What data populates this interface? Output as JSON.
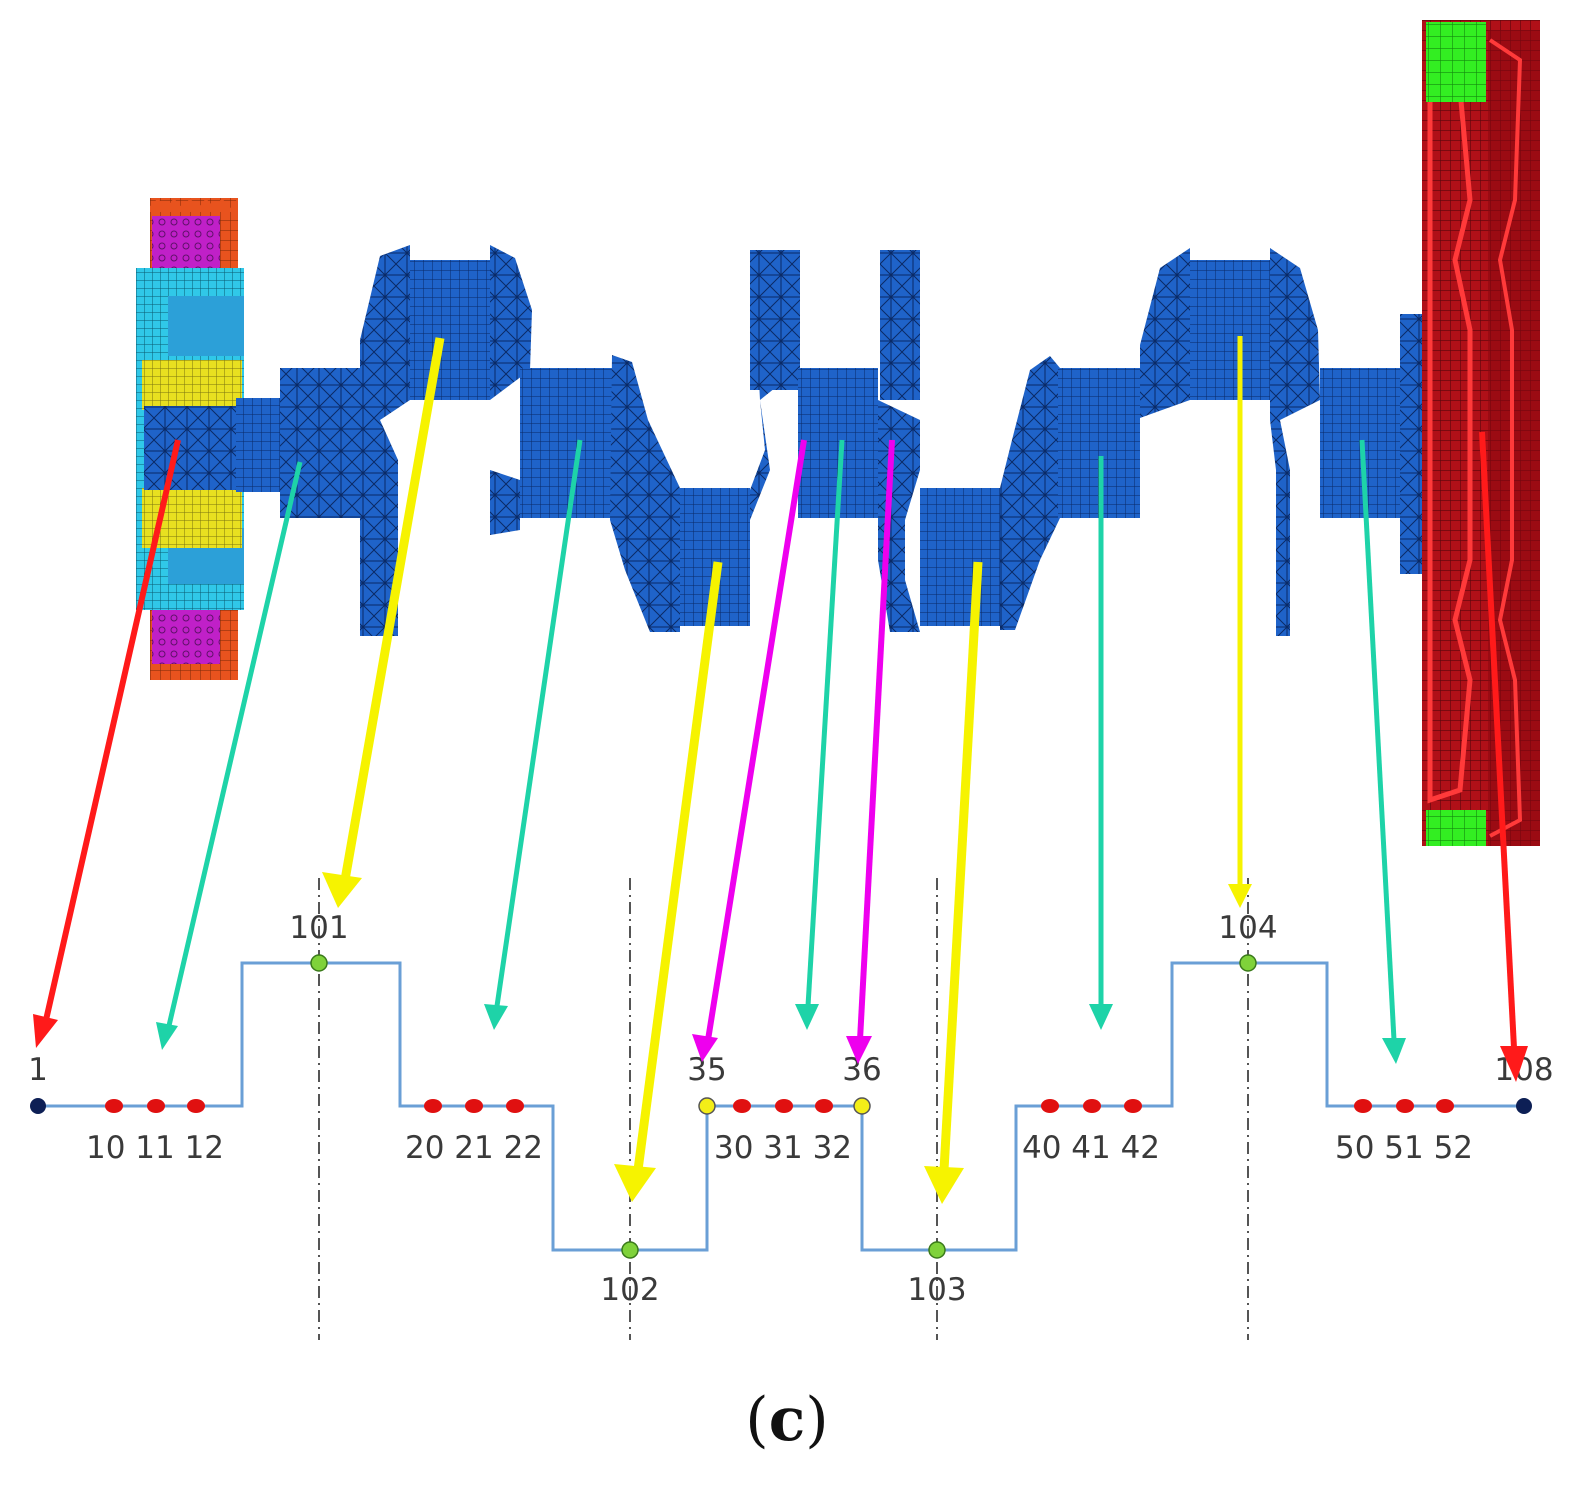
{
  "figure": {
    "caption": {
      "open": "(",
      "letter": "c",
      "close": ")"
    },
    "colors": {
      "background": "#ffffff",
      "crankshaft": "#1f63c9",
      "crankshaft_mesh": "#0a2a66",
      "flywheel": "#c8141e",
      "flywheel_dark": "#6a0a10",
      "ring": "#33ee22",
      "damper_orange": "#e8531e",
      "damper_magenta": "#c020c8",
      "damper_cyan": "#30e0e8",
      "damper_yellow": "#e8e020",
      "path_line": "#6a9fd6",
      "centerline": "#555555",
      "arrow_red": "#ff1a1a",
      "arrow_yellow": "#f6f300",
      "arrow_teal": "#1ed3a8",
      "arrow_magenta": "#ee00ee",
      "node_end": "#0d1f55",
      "node_journal": "#e01010",
      "node_pin": "#7fd23a",
      "node_web": "#f3ee18"
    },
    "components": [
      {
        "name": "torsional-damper-pulley",
        "label": ""
      },
      {
        "name": "crankshaft",
        "label": ""
      },
      {
        "name": "flywheel",
        "label": ""
      }
    ],
    "model_nodes": [
      {
        "id": "end-left",
        "label": "1",
        "type": "end"
      },
      {
        "id": "n10",
        "label": "10",
        "type": "journal"
      },
      {
        "id": "n11",
        "label": "11",
        "type": "journal"
      },
      {
        "id": "n12",
        "label": "12",
        "type": "journal"
      },
      {
        "id": "n101",
        "label": "101",
        "type": "pin"
      },
      {
        "id": "n20",
        "label": "20",
        "type": "journal"
      },
      {
        "id": "n21",
        "label": "21",
        "type": "journal"
      },
      {
        "id": "n22",
        "label": "22",
        "type": "journal"
      },
      {
        "id": "n102",
        "label": "102",
        "type": "pin"
      },
      {
        "id": "n35",
        "label": "35",
        "type": "web"
      },
      {
        "id": "n30",
        "label": "30",
        "type": "journal"
      },
      {
        "id": "n31",
        "label": "31",
        "type": "journal"
      },
      {
        "id": "n32",
        "label": "32",
        "type": "journal"
      },
      {
        "id": "n36",
        "label": "36",
        "type": "web"
      },
      {
        "id": "n103",
        "label": "103",
        "type": "pin"
      },
      {
        "id": "n40",
        "label": "40",
        "type": "journal"
      },
      {
        "id": "n41",
        "label": "41",
        "type": "journal"
      },
      {
        "id": "n42",
        "label": "42",
        "type": "journal"
      },
      {
        "id": "n104",
        "label": "104",
        "type": "pin"
      },
      {
        "id": "n50",
        "label": "50",
        "type": "journal"
      },
      {
        "id": "n51",
        "label": "51",
        "type": "journal"
      },
      {
        "id": "n52",
        "label": "52",
        "type": "journal"
      },
      {
        "id": "end-right",
        "label": "108",
        "type": "end"
      }
    ],
    "group_labels": [
      {
        "id": "g1",
        "text": "10 11 12"
      },
      {
        "id": "g2",
        "text": "20 21 22"
      },
      {
        "id": "g3",
        "text": "30 31 32"
      },
      {
        "id": "g4",
        "text": "40 41 42"
      },
      {
        "id": "g5",
        "text": "50 51 52"
      }
    ],
    "pin_labels": [
      {
        "id": "p101",
        "text": "101"
      },
      {
        "id": "p102",
        "text": "102"
      },
      {
        "id": "p103",
        "text": "103"
      },
      {
        "id": "p104",
        "text": "104"
      }
    ],
    "end_labels": [
      {
        "id": "e1",
        "text": "1"
      },
      {
        "id": "e108",
        "text": "108"
      },
      {
        "id": "e35",
        "text": "35"
      },
      {
        "id": "e36",
        "text": "36"
      }
    ],
    "arrows": [
      {
        "id": "damper-to-1",
        "color": "arrow_red"
      },
      {
        "id": "j1-to-group1",
        "color": "arrow_teal"
      },
      {
        "id": "pin1-to-101",
        "color": "arrow_yellow"
      },
      {
        "id": "j2-to-group2",
        "color": "arrow_teal"
      },
      {
        "id": "pin2-to-102",
        "color": "arrow_yellow"
      },
      {
        "id": "web-to-35",
        "color": "arrow_magenta"
      },
      {
        "id": "j3-to-group3",
        "color": "arrow_teal"
      },
      {
        "id": "web-to-36",
        "color": "arrow_magenta"
      },
      {
        "id": "pin3-to-103",
        "color": "arrow_yellow"
      },
      {
        "id": "j4-to-group4",
        "color": "arrow_teal"
      },
      {
        "id": "pin4-to-104",
        "color": "arrow_yellow"
      },
      {
        "id": "j5-to-group5",
        "color": "arrow_teal"
      },
      {
        "id": "flywheel-to-108",
        "color": "arrow_red"
      }
    ]
  }
}
